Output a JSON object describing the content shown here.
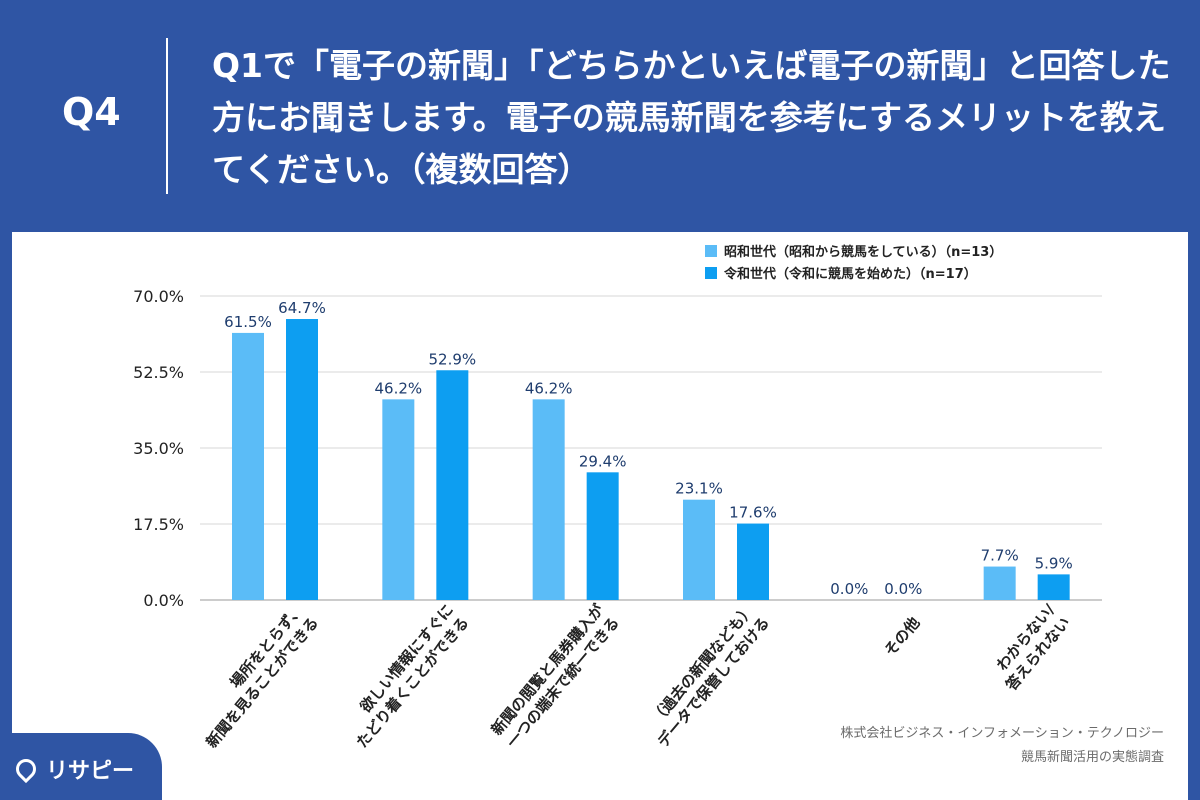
{
  "header": {
    "question_number": "Q4",
    "question_text": "Q1で「電子の新聞」「どちらかといえば電子の新聞」と回答した方にお聞きします。電子の競馬新聞を参考にするメリットを教えてください。（複数回答）"
  },
  "chart_data": {
    "type": "bar",
    "categories": [
      "場所をとらず、\n新聞を見ることができる",
      "欲しい情報にすぐに\nたどり着くことができる",
      "新聞の閲覧と馬券購入が\n一つの端末で統一できる",
      "（過去の新聞なども）\nデータで保管しておける",
      "その他",
      "わからない/\n答えられない"
    ],
    "series": [
      {
        "name": "昭和世代（昭和から競馬をしている）（n=13）",
        "values": [
          61.5,
          46.2,
          46.2,
          23.1,
          0.0,
          7.7
        ],
        "color": "#5bbcf7"
      },
      {
        "name": "令和世代（令和に競馬を始めた）（n=17）",
        "values": [
          64.7,
          52.9,
          29.4,
          17.6,
          0.0,
          5.9
        ],
        "color": "#0d9ef1"
      }
    ],
    "yticks": [
      "0.0%",
      "17.5%",
      "35.0%",
      "52.5%",
      "70.0%"
    ],
    "ylim": [
      0,
      70
    ],
    "grid": true,
    "legend_position": "top-right",
    "value_suffix": "%"
  },
  "source": {
    "line1": "株式会社ビジネス・インフォメーション・テクノロジー",
    "line2": "競馬新聞活用の実態調査"
  },
  "brand": {
    "name": "リサピー"
  }
}
